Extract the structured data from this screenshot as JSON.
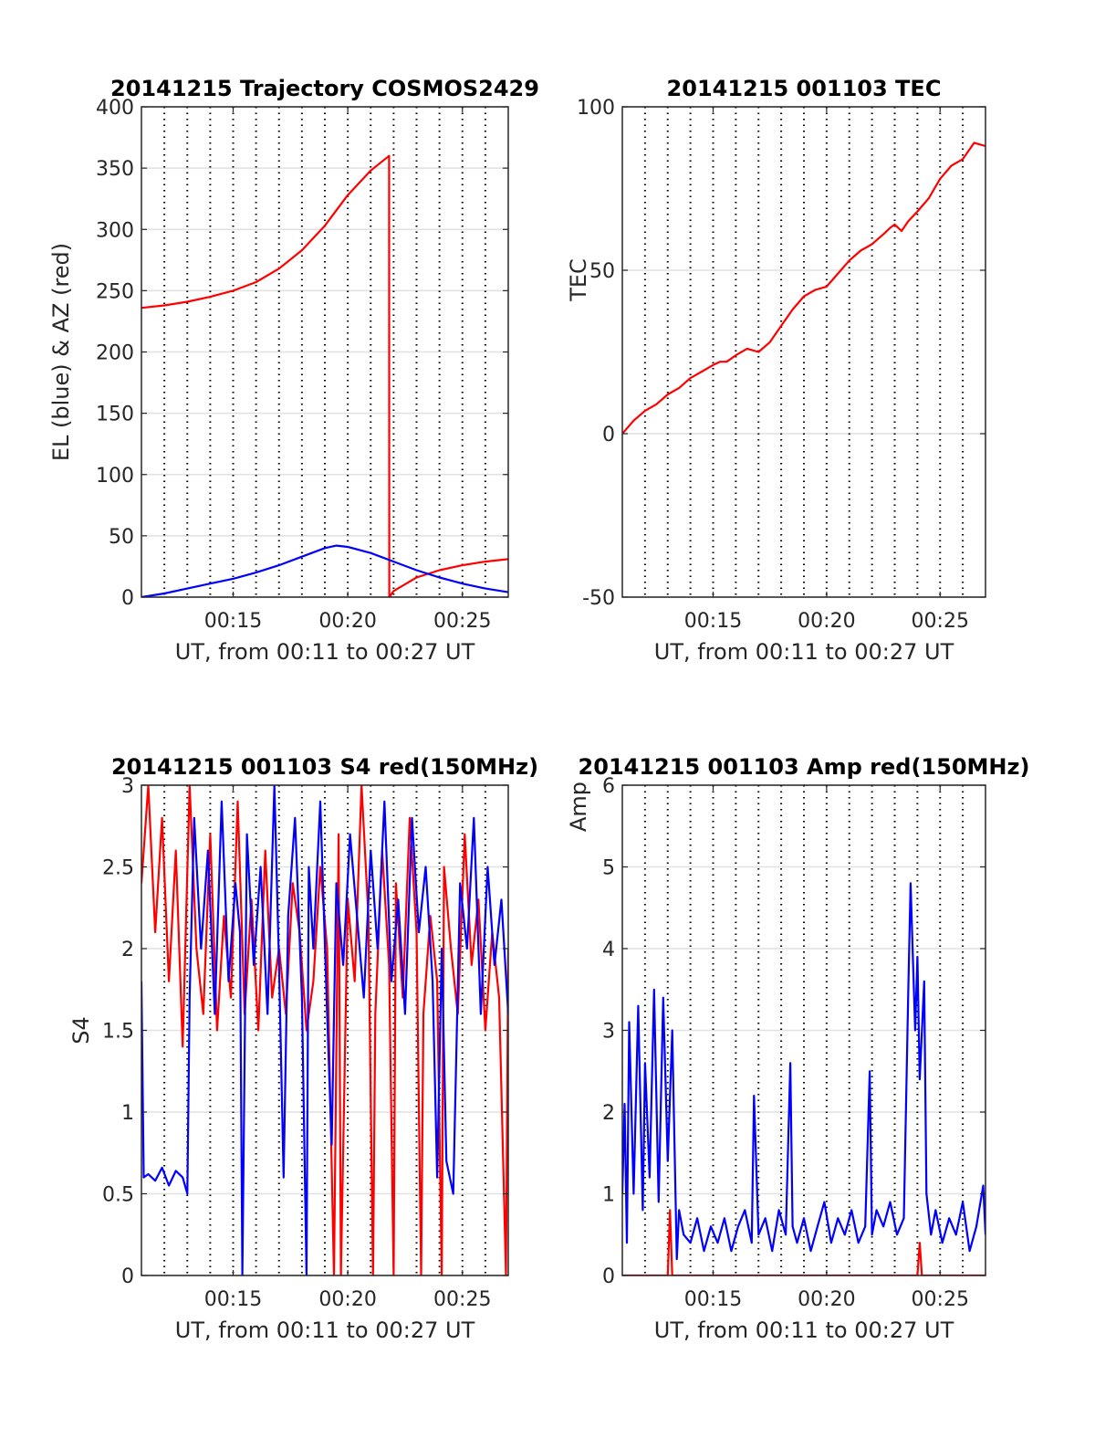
{
  "figure": {
    "background": "#ffffff",
    "grid_color": "#e1e1e1",
    "vline_color": "#000000"
  },
  "chart_data": [
    {
      "type": "line",
      "title": "20141215 Trajectory COSMOS2429",
      "xlabel": "UT, from 00:11 to 00:27 UT",
      "ylabel": "EL (blue) & AZ (red)",
      "xlim": [
        11,
        27
      ],
      "ylim": [
        0,
        400
      ],
      "xticks": [
        15,
        20,
        25
      ],
      "xtick_labels": [
        "00:15",
        "00:20",
        "00:25"
      ],
      "yticks": [
        0,
        50,
        100,
        150,
        200,
        250,
        300,
        350,
        400
      ],
      "ytick_labels": [
        "0",
        "50",
        "100",
        "150",
        "200",
        "250",
        "300",
        "350",
        "400"
      ],
      "grid": true,
      "series": [
        {
          "color": "#ff0000",
          "x": [
            11,
            12,
            13,
            14,
            15,
            16,
            17,
            18,
            19,
            20,
            21,
            21.8,
            21.8,
            21.81,
            22,
            23,
            24,
            25,
            26,
            27
          ],
          "y": [
            236,
            238,
            241,
            245,
            250,
            257,
            268,
            283,
            303,
            328,
            348,
            360,
            360,
            0,
            5,
            16,
            22,
            26,
            29,
            31
          ]
        },
        {
          "color": "#0000ff",
          "x": [
            11,
            12,
            13,
            14,
            15,
            16,
            17,
            18,
            19,
            19.5,
            20,
            21,
            22,
            23,
            24,
            25,
            26,
            27
          ],
          "y": [
            0,
            3,
            7,
            11,
            15,
            20,
            26,
            33,
            40,
            42,
            41,
            36,
            29,
            22,
            16,
            11,
            7,
            4
          ]
        }
      ]
    },
    {
      "type": "line",
      "title": "20141215 001103 TEC",
      "xlabel": "UT, from 00:11 to 00:27 UT",
      "ylabel": "TEC",
      "xlim": [
        11,
        27
      ],
      "ylim": [
        -50,
        100
      ],
      "xticks": [
        15,
        20,
        25
      ],
      "xtick_labels": [
        "00:15",
        "00:20",
        "00:25"
      ],
      "yticks": [
        -50,
        0,
        50,
        100
      ],
      "ytick_labels": [
        "-50",
        "0",
        "50",
        "100"
      ],
      "grid": true,
      "series": [
        {
          "color": "#ff0000",
          "x": [
            11,
            11.5,
            12,
            12.5,
            13,
            13.5,
            14,
            14.5,
            15,
            15.3,
            15.6,
            16,
            16.5,
            17,
            17.5,
            18,
            18.5,
            19,
            19.5,
            20,
            20.5,
            21,
            21.5,
            22,
            22.5,
            22.8,
            23,
            23.3,
            23.6,
            24,
            24.5,
            25,
            25.5,
            26,
            26.5,
            27
          ],
          "y": [
            0,
            4,
            7,
            9,
            12,
            14,
            17,
            19,
            21,
            22,
            22,
            24,
            26,
            25,
            28,
            33,
            38,
            42,
            44,
            45,
            49,
            53,
            56,
            58,
            61,
            63,
            64,
            62,
            65,
            68,
            72,
            78,
            82,
            84,
            89,
            88
          ]
        }
      ]
    },
    {
      "type": "line",
      "title": "20141215 001103 S4 red(150MHz)",
      "xlabel": "UT, from 00:11 to 00:27 UT",
      "ylabel": "S4",
      "xlim": [
        11,
        27
      ],
      "ylim": [
        0,
        3
      ],
      "xticks": [
        15,
        20,
        25
      ],
      "xtick_labels": [
        "00:15",
        "00:20",
        "00:25"
      ],
      "yticks": [
        0,
        0.5,
        1,
        1.5,
        2,
        2.5,
        3
      ],
      "ytick_labels": [
        "0",
        "0.5",
        "1",
        "1.5",
        "2",
        "2.5",
        "3"
      ],
      "grid": true,
      "series": [
        {
          "color": "#ff0000",
          "x": [
            11,
            11.3,
            11.6,
            11.9,
            12.2,
            12.5,
            12.8,
            13.1,
            13.4,
            13.7,
            14.0,
            14.3,
            14.6,
            14.9,
            15.2,
            15.5,
            15.8,
            16.1,
            16.4,
            16.7,
            17.0,
            17.3,
            17.6,
            17.9,
            18.2,
            18.5,
            18.8,
            19.1,
            19.4,
            19.6,
            19.7,
            20.0,
            20.3,
            20.6,
            20.9,
            21.1,
            21.2,
            21.5,
            21.8,
            22.0,
            22.1,
            22.4,
            22.7,
            23.0,
            23.2,
            23.3,
            23.6,
            23.9,
            24.1,
            24.2,
            24.5,
            24.8,
            25.1,
            25.4,
            25.7,
            26.0,
            26.3,
            26.6,
            26.9,
            27
          ],
          "y": [
            2.4,
            3.0,
            2.1,
            2.8,
            1.8,
            2.6,
            1.4,
            3.0,
            2.0,
            1.6,
            2.7,
            1.5,
            2.2,
            1.7,
            2.9,
            1.6,
            2.3,
            1.5,
            2.6,
            1.7,
            2.0,
            1.6,
            2.4,
            2.1,
            1.5,
            1.8,
            2.5,
            2.0,
            0.0,
            2.7,
            0.0,
            2.3,
            1.8,
            3.0,
            2.2,
            0.0,
            1.6,
            2.6,
            1.9,
            0.0,
            2.4,
            1.7,
            2.8,
            2.1,
            0.0,
            1.6,
            2.2,
            1.8,
            0.0,
            2.5,
            2.0,
            1.6,
            2.7,
            1.9,
            2.3,
            1.5,
            2.1,
            1.7,
            0.0,
            2.0
          ]
        },
        {
          "color": "#0000ff",
          "x": [
            11,
            11.1,
            11.3,
            11.6,
            11.9,
            12.2,
            12.5,
            12.8,
            13.0,
            13.1,
            13.3,
            13.6,
            13.9,
            14.2,
            14.5,
            14.8,
            15.1,
            15.3,
            15.4,
            15.6,
            15.9,
            16.2,
            16.5,
            16.8,
            17.0,
            17.2,
            17.4,
            17.7,
            18.0,
            18.2,
            18.3,
            18.5,
            18.8,
            19.1,
            19.3,
            19.5,
            19.8,
            20.1,
            20.4,
            20.7,
            21.0,
            21.3,
            21.6,
            21.9,
            22.2,
            22.5,
            22.8,
            23.1,
            23.4,
            23.7,
            23.9,
            24.1,
            24.3,
            24.6,
            24.9,
            25.2,
            25.5,
            25.8,
            26.1,
            26.4,
            26.7,
            27
          ],
          "y": [
            1.8,
            0.6,
            0.62,
            0.58,
            0.66,
            0.55,
            0.64,
            0.6,
            0.5,
            1.7,
            2.8,
            2.0,
            2.6,
            1.6,
            2.9,
            1.8,
            2.4,
            2.1,
            0.0,
            2.7,
            1.9,
            2.5,
            1.6,
            3.0,
            1.9,
            0.6,
            2.2,
            2.8,
            1.7,
            0.0,
            2.5,
            2.0,
            2.9,
            1.6,
            0.8,
            2.4,
            1.9,
            2.7,
            2.2,
            1.7,
            2.6,
            2.0,
            2.9,
            1.8,
            2.3,
            1.6,
            2.8,
            2.1,
            2.5,
            1.8,
            0.6,
            2.0,
            0.7,
            0.5,
            2.4,
            2.0,
            2.8,
            1.6,
            2.5,
            1.9,
            2.3,
            1.6
          ]
        }
      ]
    },
    {
      "type": "line",
      "title": "20141215 001103 Amp red(150MHz)",
      "xlabel": "UT, from 00:11 to 00:27 UT",
      "ylabel": "Amp",
      "xlim": [
        11,
        27
      ],
      "ylim": [
        0,
        6
      ],
      "xticks": [
        15,
        20,
        25
      ],
      "xtick_labels": [
        "00:15",
        "00:20",
        "00:25"
      ],
      "yticks": [
        0,
        1,
        2,
        3,
        4,
        5,
        6
      ],
      "ytick_labels": [
        "0",
        "1",
        "2",
        "3",
        "4",
        "5",
        "6"
      ],
      "grid": true,
      "series": [
        {
          "color": "#ff0000",
          "x": [
            11,
            13,
            13.1,
            13.2,
            15,
            20,
            24.0,
            24.1,
            24.2,
            27
          ],
          "y": [
            0,
            0,
            0.8,
            0,
            0,
            0,
            0,
            0.4,
            0,
            0
          ]
        },
        {
          "color": "#0000ff",
          "x": [
            11,
            11.1,
            11.2,
            11.3,
            11.5,
            11.7,
            11.9,
            12.0,
            12.2,
            12.4,
            12.6,
            12.8,
            13.0,
            13.2,
            13.4,
            13.5,
            13.7,
            14.0,
            14.3,
            14.6,
            14.9,
            15.2,
            15.5,
            15.8,
            16.1,
            16.4,
            16.7,
            16.8,
            17.0,
            17.3,
            17.6,
            17.9,
            18.2,
            18.4,
            18.5,
            18.7,
            19.0,
            19.3,
            19.6,
            19.9,
            20.2,
            20.5,
            20.8,
            21.1,
            21.4,
            21.7,
            21.9,
            22.0,
            22.2,
            22.5,
            22.8,
            23.1,
            23.4,
            23.6,
            23.7,
            23.9,
            24.0,
            24.1,
            24.3,
            24.4,
            24.6,
            24.8,
            25.1,
            25.4,
            25.7,
            26.0,
            26.3,
            26.6,
            26.9,
            27
          ],
          "y": [
            1.0,
            2.1,
            0.4,
            3.1,
            1.0,
            3.3,
            0.8,
            2.6,
            1.2,
            3.5,
            0.9,
            3.4,
            1.4,
            3.0,
            0.2,
            0.8,
            0.5,
            0.4,
            0.7,
            0.3,
            0.6,
            0.4,
            0.7,
            0.3,
            0.6,
            0.8,
            0.4,
            2.2,
            0.5,
            0.7,
            0.3,
            0.8,
            0.5,
            2.6,
            0.6,
            0.4,
            0.7,
            0.3,
            0.6,
            0.9,
            0.4,
            0.7,
            0.5,
            0.8,
            0.4,
            0.6,
            2.5,
            0.5,
            0.8,
            0.6,
            0.9,
            0.5,
            0.7,
            3.5,
            4.8,
            3.0,
            3.9,
            2.4,
            3.6,
            1.0,
            0.5,
            0.8,
            0.4,
            0.7,
            0.5,
            0.9,
            0.3,
            0.6,
            1.1,
            0.5
          ]
        }
      ]
    }
  ]
}
